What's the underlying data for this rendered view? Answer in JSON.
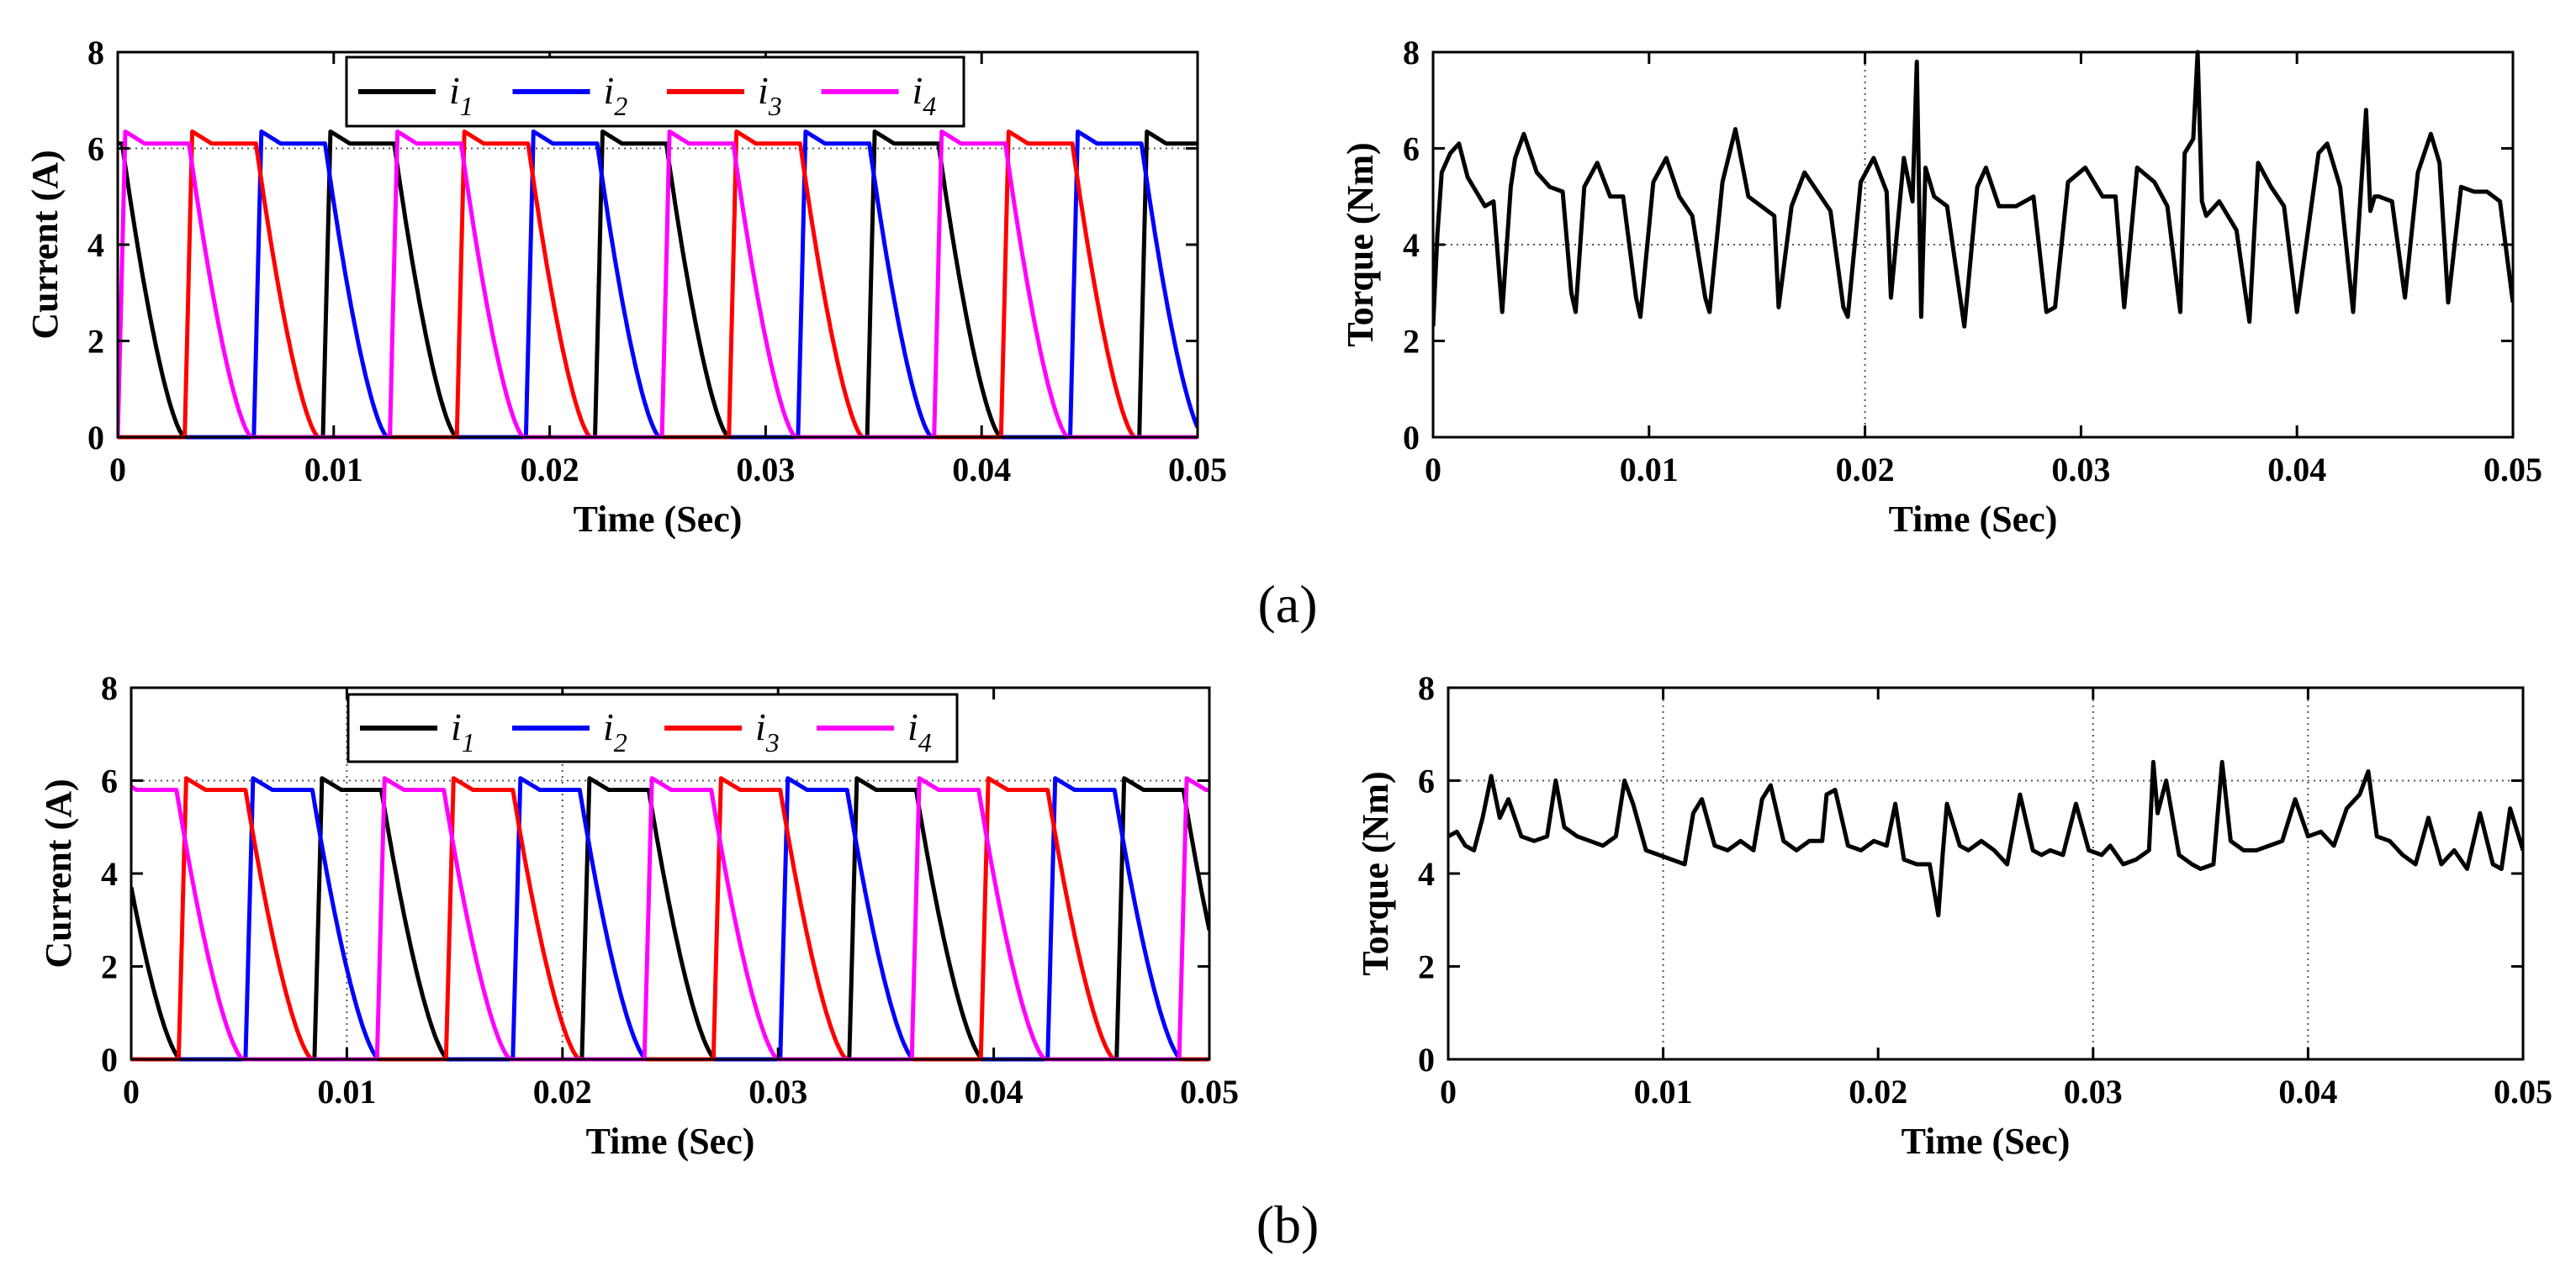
{
  "panels": [
    {
      "label": "(a)"
    },
    {
      "label": "(b)"
    }
  ],
  "chart_data": [
    {
      "type": "line",
      "panel": "a",
      "role": "current",
      "xlabel": "Time (Sec)",
      "ylabel": "Current (A)",
      "xlim": [
        0,
        0.05
      ],
      "ylim": [
        0,
        8
      ],
      "xticks": [
        0,
        0.01,
        0.02,
        0.03,
        0.04,
        0.05
      ],
      "xtick_labels": [
        "0",
        "0.01",
        "0.02",
        "0.03",
        "0.04",
        "0.05"
      ],
      "yticks": [
        0,
        2,
        4,
        6,
        8
      ],
      "ytick_labels": [
        "0",
        "2",
        "4",
        "6",
        "8"
      ],
      "legend_position": "top-center",
      "period": 0.0126,
      "phase_on_times": [
        0.0095,
        0.0063,
        0.0031,
        0.0
      ],
      "conduction_width": 0.0033,
      "plateau_level": 6.1,
      "peak_level": 6.35,
      "tail_duration": 0.0029,
      "series": [
        {
          "name": "i",
          "sub": "1",
          "color": "#000000"
        },
        {
          "name": "i",
          "sub": "2",
          "color": "#0000ff"
        },
        {
          "name": "i",
          "sub": "3",
          "color": "#ff0000"
        },
        {
          "name": "i",
          "sub": "4",
          "color": "#ff00ff"
        }
      ],
      "grid": "dotted reference lines"
    },
    {
      "type": "line",
      "panel": "a",
      "role": "torque",
      "xlabel": "Time (Sec)",
      "ylabel": "Torque (Nm)",
      "xlim": [
        0,
        0.05
      ],
      "ylim": [
        0,
        8
      ],
      "xticks": [
        0,
        0.01,
        0.02,
        0.03,
        0.04,
        0.05
      ],
      "xtick_labels": [
        "0",
        "0.01",
        "0.02",
        "0.03",
        "0.04",
        "0.05"
      ],
      "yticks": [
        0,
        2,
        4,
        6,
        8
      ],
      "ytick_labels": [
        "0",
        "2",
        "4",
        "6",
        "8"
      ],
      "series": [
        {
          "color": "#000000",
          "x": [
            0,
            0.0002,
            0.0004,
            0.0008,
            0.0012,
            0.0016,
            0.002,
            0.0024,
            0.0028,
            0.0032,
            0.0036,
            0.0038,
            0.0042,
            0.0048,
            0.0054,
            0.006,
            0.0064,
            0.0066,
            0.007,
            0.0076,
            0.0082,
            0.0088,
            0.0094,
            0.0096,
            0.0102,
            0.0108,
            0.0114,
            0.012,
            0.0126,
            0.0128,
            0.0134,
            0.014,
            0.0146,
            0.0152,
            0.0158,
            0.016,
            0.0166,
            0.0172,
            0.0178,
            0.0184,
            0.019,
            0.0192,
            0.0198,
            0.0204,
            0.021,
            0.0212,
            0.0218,
            0.0222,
            0.0224,
            0.0226,
            0.0228,
            0.0232,
            0.0238,
            0.0246,
            0.0252,
            0.0256,
            0.0262,
            0.027,
            0.0278,
            0.0284,
            0.0288,
            0.0294,
            0.0302,
            0.031,
            0.0316,
            0.032,
            0.0326,
            0.0334,
            0.034,
            0.0346,
            0.0348,
            0.0352,
            0.0354,
            0.0356,
            0.0358,
            0.0364,
            0.0372,
            0.0378,
            0.0382,
            0.0388,
            0.0394,
            0.04,
            0.041,
            0.0414,
            0.042,
            0.0426,
            0.0432,
            0.0434,
            0.0436,
            0.0438,
            0.0444,
            0.045,
            0.0456,
            0.0462,
            0.0466,
            0.047,
            0.0476,
            0.0482,
            0.0488,
            0.0494,
            0.05
          ],
          "y": [
            2.3,
            4.2,
            5.5,
            5.9,
            6.1,
            5.4,
            5.1,
            4.8,
            4.9,
            2.6,
            5.2,
            5.8,
            6.3,
            5.5,
            5.2,
            5.1,
            3.0,
            2.6,
            5.2,
            5.7,
            5.0,
            5.0,
            2.9,
            2.5,
            5.3,
            5.8,
            5.0,
            4.6,
            2.9,
            2.6,
            5.3,
            6.4,
            5.0,
            4.8,
            4.6,
            2.7,
            4.8,
            5.5,
            5.1,
            4.7,
            2.7,
            2.5,
            5.3,
            5.8,
            5.1,
            2.9,
            5.8,
            4.9,
            7.8,
            2.5,
            5.6,
            5.0,
            4.8,
            2.3,
            5.2,
            5.6,
            4.8,
            4.8,
            5.0,
            2.6,
            2.7,
            5.3,
            5.6,
            5.0,
            5.0,
            2.7,
            5.6,
            5.3,
            4.8,
            2.6,
            5.9,
            6.2,
            8.0,
            4.9,
            4.6,
            4.9,
            4.3,
            2.4,
            5.7,
            5.2,
            4.8,
            2.6,
            5.9,
            6.1,
            5.2,
            2.6,
            6.8,
            4.7,
            5.0,
            5.0,
            4.9,
            2.9,
            5.5,
            6.3,
            5.7,
            2.8,
            5.2,
            5.1,
            5.1,
            4.9,
            2.8
          ]
        }
      ],
      "grid": "dotted reference lines"
    },
    {
      "type": "line",
      "panel": "b",
      "role": "current",
      "xlabel": "Time (Sec)",
      "ylabel": "Current (A)",
      "xlim": [
        0,
        0.05
      ],
      "ylim": [
        0,
        8
      ],
      "xticks": [
        0,
        0.01,
        0.02,
        0.03,
        0.04,
        0.05
      ],
      "xtick_labels": [
        "0",
        "0.01",
        "0.02",
        "0.03",
        "0.04",
        "0.05"
      ],
      "yticks": [
        0,
        2,
        4,
        6,
        8
      ],
      "ytick_labels": [
        "0",
        "2",
        "4",
        "6",
        "8"
      ],
      "legend_position": "top-center",
      "period": 0.0124,
      "phase_on_times": [
        0.0085,
        0.0053,
        0.0022,
        -0.001
      ],
      "conduction_width": 0.0031,
      "plateau_level": 5.8,
      "peak_level": 6.05,
      "tail_duration": 0.0031,
      "series": [
        {
          "name": "i",
          "sub": "1",
          "color": "#000000"
        },
        {
          "name": "i",
          "sub": "2",
          "color": "#0000ff"
        },
        {
          "name": "i",
          "sub": "3",
          "color": "#ff0000"
        },
        {
          "name": "i",
          "sub": "4",
          "color": "#ff00ff"
        }
      ],
      "grid": "dotted reference lines"
    },
    {
      "type": "line",
      "panel": "b",
      "role": "torque",
      "xlabel": "Time (Sec)",
      "ylabel": "Torque (Nm)",
      "xlim": [
        0,
        0.05
      ],
      "ylim": [
        0,
        8
      ],
      "xticks": [
        0,
        0.01,
        0.02,
        0.03,
        0.04,
        0.05
      ],
      "xtick_labels": [
        "0",
        "0.01",
        "0.02",
        "0.03",
        "0.04",
        "0.05"
      ],
      "yticks": [
        0,
        2,
        4,
        6,
        8
      ],
      "ytick_labels": [
        "0",
        "2",
        "4",
        "6",
        "8"
      ],
      "series": [
        {
          "color": "#000000",
          "x": [
            0,
            0.0004,
            0.0008,
            0.0012,
            0.0016,
            0.002,
            0.0024,
            0.0028,
            0.0034,
            0.004,
            0.0046,
            0.005,
            0.0054,
            0.006,
            0.0066,
            0.0072,
            0.0078,
            0.0082,
            0.0086,
            0.0092,
            0.0098,
            0.0104,
            0.011,
            0.0114,
            0.0118,
            0.0124,
            0.013,
            0.0136,
            0.0142,
            0.0146,
            0.015,
            0.0156,
            0.0162,
            0.0168,
            0.0174,
            0.0176,
            0.018,
            0.0186,
            0.0192,
            0.0198,
            0.0204,
            0.0208,
            0.0212,
            0.0218,
            0.0224,
            0.0228,
            0.023,
            0.0232,
            0.0238,
            0.0242,
            0.0248,
            0.0254,
            0.026,
            0.0266,
            0.0272,
            0.0276,
            0.028,
            0.0286,
            0.0292,
            0.0298,
            0.0304,
            0.0308,
            0.0314,
            0.032,
            0.0326,
            0.0328,
            0.033,
            0.0334,
            0.034,
            0.0346,
            0.035,
            0.0356,
            0.036,
            0.0364,
            0.037,
            0.0376,
            0.0382,
            0.0388,
            0.0394,
            0.04,
            0.0406,
            0.0412,
            0.0418,
            0.0424,
            0.0428,
            0.0432,
            0.0438,
            0.0444,
            0.045,
            0.0456,
            0.0462,
            0.0468,
            0.0474,
            0.048,
            0.0486,
            0.049,
            0.0494,
            0.05
          ],
          "y": [
            4.8,
            4.9,
            4.6,
            4.5,
            5.2,
            6.1,
            5.2,
            5.6,
            4.8,
            4.7,
            4.8,
            6.0,
            5.0,
            4.8,
            4.7,
            4.6,
            4.8,
            6.0,
            5.5,
            4.5,
            4.4,
            4.3,
            4.2,
            5.3,
            5.6,
            4.6,
            4.5,
            4.7,
            4.5,
            5.6,
            5.9,
            4.7,
            4.5,
            4.7,
            4.7,
            5.7,
            5.8,
            4.6,
            4.5,
            4.7,
            4.6,
            5.5,
            4.3,
            4.2,
            4.2,
            3.1,
            4.4,
            5.5,
            4.6,
            4.5,
            4.7,
            4.5,
            4.2,
            5.7,
            4.5,
            4.4,
            4.5,
            4.4,
            5.5,
            4.5,
            4.4,
            4.6,
            4.2,
            4.3,
            4.5,
            6.4,
            5.3,
            6.0,
            4.4,
            4.2,
            4.1,
            4.2,
            6.4,
            4.7,
            4.5,
            4.5,
            4.6,
            4.7,
            5.6,
            4.8,
            4.9,
            4.6,
            5.4,
            5.7,
            6.2,
            4.8,
            4.7,
            4.4,
            4.2,
            5.2,
            4.2,
            4.5,
            4.1,
            5.3,
            4.2,
            4.1,
            5.4,
            4.5
          ]
        }
      ],
      "grid": "dotted reference lines"
    }
  ]
}
